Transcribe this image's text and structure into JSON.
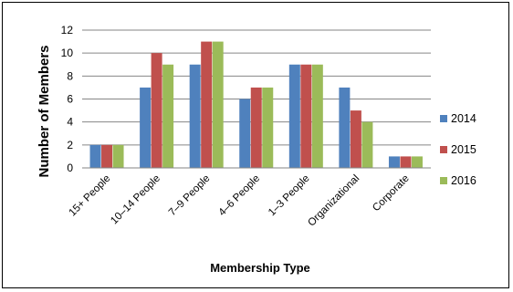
{
  "chart_data": {
    "type": "bar",
    "title": "",
    "xlabel": "Membership Type",
    "ylabel": "Number of Members",
    "ylim": [
      0,
      12
    ],
    "yticks": [
      0,
      2,
      4,
      6,
      8,
      10,
      12
    ],
    "grid": true,
    "legend_position": "right",
    "categories": [
      "15+ People",
      "10–14 People",
      "7–9 People",
      "4–6 People",
      "1–3 People",
      "Organizational",
      "Corporate"
    ],
    "series": [
      {
        "name": "2014",
        "color": "#4F81BD",
        "values": [
          2,
          7,
          9,
          6,
          9,
          7,
          1
        ]
      },
      {
        "name": "2015",
        "color": "#C0504D",
        "values": [
          2,
          10,
          11,
          7,
          9,
          5,
          1
        ]
      },
      {
        "name": "2016",
        "color": "#9BBB59",
        "values": [
          2,
          9,
          11,
          7,
          9,
          4,
          1
        ]
      }
    ]
  }
}
